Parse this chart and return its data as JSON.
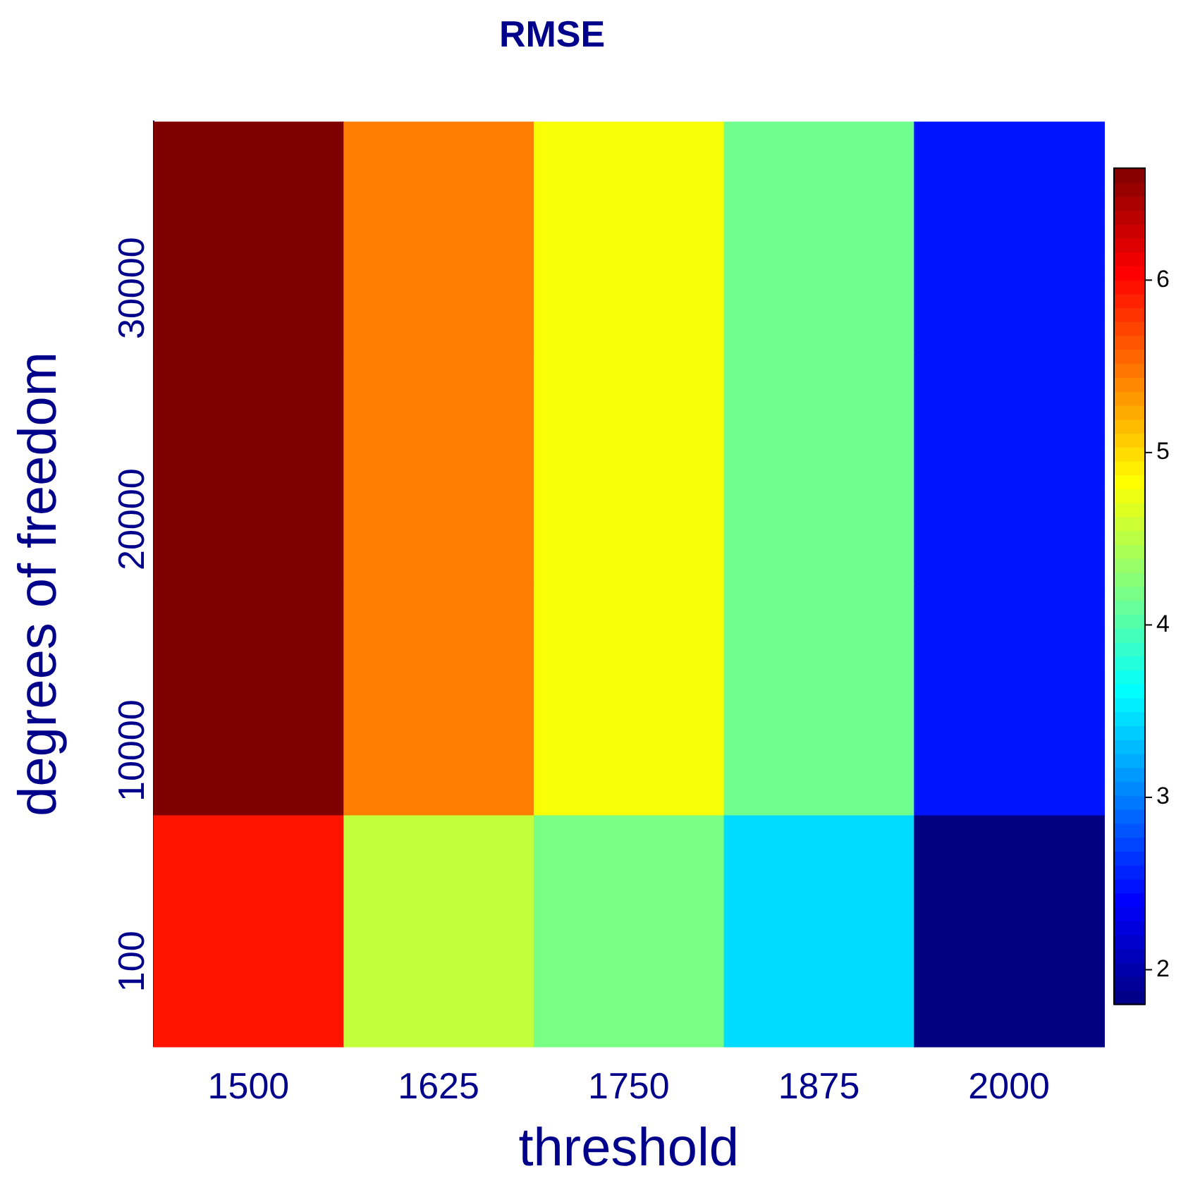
{
  "chart_data": {
    "type": "heatmap",
    "title": "RMSE",
    "xlabel": "threshold",
    "ylabel": "degrees of freedom",
    "categories": [
      "1500",
      "1625",
      "1750",
      "1875",
      "2000"
    ],
    "y_categories": [
      "30000",
      "20000",
      "10000",
      "100"
    ],
    "cells": [
      [
        6.65,
        5.45,
        4.8,
        4.15,
        2.5
      ],
      [
        6.65,
        5.45,
        4.8,
        4.15,
        2.5
      ],
      [
        6.65,
        5.45,
        4.8,
        4.15,
        2.5
      ],
      [
        5.95,
        4.55,
        4.2,
        3.45,
        1.8
      ]
    ],
    "clim": [
      1.8,
      6.65
    ],
    "cticks": [
      2,
      3,
      4,
      5,
      6
    ],
    "grid": false
  }
}
